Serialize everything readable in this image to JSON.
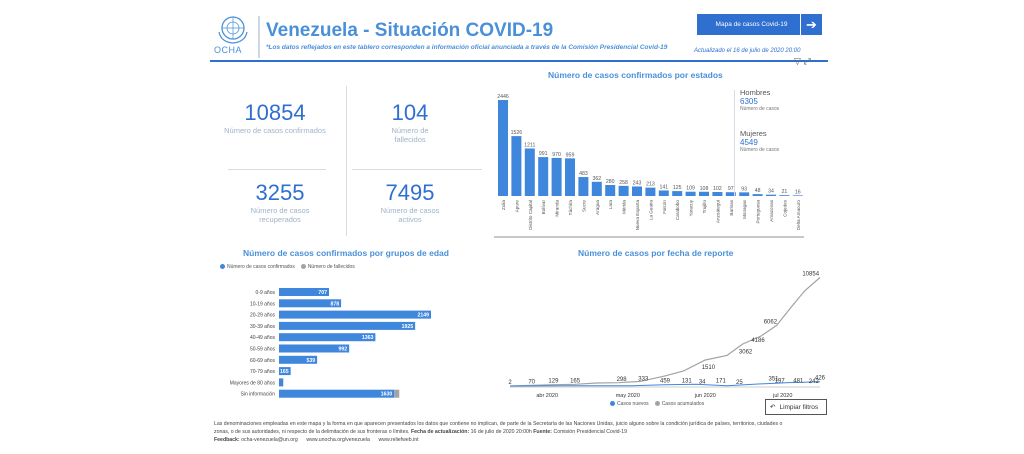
{
  "header": {
    "logo_text": "OCHA",
    "title": "Venezuela - Situación COVID-19",
    "subtitle": "*Los datos reflejados en este tablero corresponden a información oficial anunciada a través de la Comisión Presidencial Covid-19",
    "map_button": "Mapa de casos Covid-19",
    "updated": "Actualizado el 16 de julio de 2020 20:00"
  },
  "kpis": {
    "confirmed_value": "10854",
    "confirmed_label": "Número de casos confirmados",
    "deaths_value": "104",
    "deaths_label": "Número de fallecidos",
    "recovered_value": "3255",
    "recovered_label": "Número de casos recuperados",
    "active_value": "7495",
    "active_label": "Número de casos activos"
  },
  "sections": {
    "states_title": "Número de casos confirmados por estados",
    "age_title": "Número de casos confirmados por grupos de edad",
    "date_title": "Número de casos por fecha de reporte"
  },
  "gender": {
    "men_label": "Hombres",
    "men_value": "6305",
    "men_sub": "Número de casos",
    "women_label": "Mujeres",
    "women_value": "4549",
    "women_sub": "Número de casos"
  },
  "age_legend": {
    "a": "Número de casos confirmados",
    "b": "Número de fallecidos"
  },
  "date_legend": {
    "a": "Casos nuevos",
    "b": "Casos acumulados"
  },
  "clear_button": "Limpiar filtros",
  "footer": {
    "line1": "Las denominaciones empleadas en este mapa y la forma en que aparecen presentados los datos que contiene no implican, de parte de la Secretaría de las Naciones Unidas, juicio alguno sobre la condición jurídica de países, territorios, ciudades o",
    "line2": "zonas, o de sus autoridades, ni respecto de la delimitación de sus fronteras o límites.",
    "update_label": "Fecha de actualización:",
    "update_value": "16 de julio de 2020 20:00h",
    "source_label": "Fuente:",
    "source_value": "Comisión Presidencial Covid-19",
    "feedback_label": "Feedback:",
    "email": "ocha-venezuela@un.org",
    "site1": "www.unocha.org/venezuela",
    "site2": "www.reliefweb.int"
  },
  "colors": {
    "accent": "#2f6fd0",
    "bar": "#3f86dd",
    "grey": "#a3a3a3"
  },
  "chart_data": [
    {
      "type": "bar",
      "title": "Número de casos confirmados por estados",
      "categories": [
        "Zulia",
        "Apure",
        "Distrito Capital",
        "Bolívar",
        "Miranda",
        "Táchira",
        "Sucre",
        "Aragua",
        "Lara",
        "Mérida",
        "Nueva Esparta",
        "La Guaira",
        "Falcón",
        "Carabobo",
        "Yaracuy",
        "Trujillo",
        "Anzoátegui",
        "Barinas",
        "Monagas",
        "Portuguesa",
        "Amazonas",
        "Cojedes",
        "Delta Amacuro"
      ],
      "values": [
        2446,
        1526,
        1211,
        991,
        970,
        959,
        483,
        362,
        280,
        258,
        243,
        213,
        141,
        125,
        109,
        108,
        102,
        97,
        93,
        48,
        34,
        21,
        16
      ],
      "value_labels": [
        "2446",
        "1526",
        "1211",
        "991",
        "970",
        "959",
        "483",
        "362",
        "280",
        "258",
        "243",
        "213",
        "141",
        "125",
        "109",
        "108",
        "102",
        "97",
        "93",
        "48",
        "34",
        "21",
        "16"
      ]
    },
    {
      "type": "bar",
      "orientation": "horizontal",
      "title": "Número de casos confirmados por grupos de edad",
      "categories": [
        "0-9 años",
        "10-19 años",
        "20-29 años",
        "30-39 años",
        "40-49 años",
        "50-59 años",
        "60-69 años",
        "70-79 años",
        "Mayores de 80 años",
        "Sin información"
      ],
      "series": [
        {
          "name": "Número de casos confirmados",
          "values": [
            707,
            878,
            2149,
            1925,
            1363,
            992,
            539,
            165,
            60,
            1630
          ]
        },
        {
          "name": "Número de fallecidos",
          "values": [
            0,
            0,
            0,
            0,
            0,
            0,
            0,
            0,
            0,
            60
          ]
        }
      ],
      "value_labels": [
        "707",
        "878",
        "2149",
        "1925",
        "1363",
        "992",
        "539",
        "165",
        "",
        "1630"
      ]
    },
    {
      "type": "line",
      "title": "Número de casos por fecha de reporte",
      "x_ticks": [
        "abr 2020",
        "may 2020",
        "jun 2020",
        "jul 2020"
      ],
      "series": [
        {
          "name": "Casos acumulados",
          "x": [
            0,
            0.07,
            0.14,
            0.21,
            0.28,
            0.35,
            0.42,
            0.5,
            0.56,
            0.63,
            0.7,
            0.75,
            0.81,
            0.86,
            0.91,
            0.95,
            1.0
          ],
          "values": [
            2,
            70,
            129,
            165,
            298,
            333,
            459,
            1010,
            1510,
            2600,
            3062,
            4186,
            5000,
            6062,
            8000,
            9500,
            10854
          ]
        },
        {
          "name": "Casos nuevos",
          "x": [
            0,
            0.2,
            0.4,
            0.5,
            0.6,
            0.7,
            0.8,
            0.9,
            1.0
          ],
          "values": [
            2,
            20,
            34,
            131,
            171,
            25,
            196,
            340,
            426
          ]
        }
      ],
      "point_labels": [
        {
          "t": "2",
          "x": 0.0,
          "y": 2
        },
        {
          "t": "70",
          "x": 0.07,
          "y": 70
        },
        {
          "t": "129",
          "x": 0.14,
          "y": 129
        },
        {
          "t": "165",
          "x": 0.21,
          "y": 165
        },
        {
          "t": "298",
          "x": 0.36,
          "y": 298
        },
        {
          "t": "333",
          "x": 0.43,
          "y": 333
        },
        {
          "t": "459",
          "x": 0.5,
          "y": 140
        },
        {
          "t": "131",
          "x": 0.57,
          "y": 131
        },
        {
          "t": "34",
          "x": 0.62,
          "y": 34
        },
        {
          "t": "171",
          "x": 0.68,
          "y": 171
        },
        {
          "t": "25",
          "x": 0.74,
          "y": 25
        },
        {
          "t": "1510",
          "x": 0.64,
          "y": 1510
        },
        {
          "t": "3062",
          "x": 0.76,
          "y": 3062
        },
        {
          "t": "4186",
          "x": 0.8,
          "y": 4186
        },
        {
          "t": "6062",
          "x": 0.84,
          "y": 6062
        },
        {
          "t": "351",
          "x": 0.85,
          "y": 351
        },
        {
          "t": "197",
          "x": 0.87,
          "y": 140
        },
        {
          "t": "481",
          "x": 0.93,
          "y": 140
        },
        {
          "t": "242",
          "x": 0.98,
          "y": 100
        },
        {
          "t": "426",
          "x": 1.0,
          "y": 426
        },
        {
          "t": "10854",
          "x": 0.97,
          "y": 10854
        }
      ],
      "ylim": [
        0,
        11000
      ]
    }
  ]
}
